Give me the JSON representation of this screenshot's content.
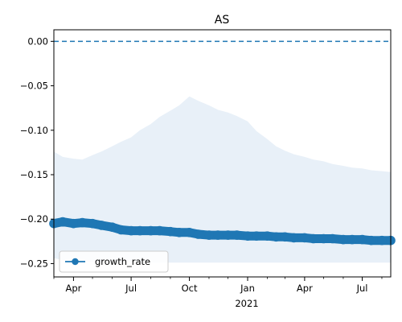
{
  "chart_data": {
    "type": "line",
    "title": "AS",
    "xlabel": "",
    "ylabel": "",
    "x_tick_labels": [
      "Apr",
      "Jul",
      "Oct",
      "Jan",
      "Apr",
      "Jul"
    ],
    "x_year_label": "2021",
    "x_tick_dates": [
      "2020-04-01",
      "2020-07-01",
      "2020-10-01",
      "2021-01-01",
      "2021-04-01",
      "2021-07-01"
    ],
    "xlim": [
      "2020-03-01",
      "2021-08-15"
    ],
    "ylim": [
      -0.265,
      0.013
    ],
    "y_ticks": [
      0.0,
      -0.05,
      -0.1,
      -0.15,
      -0.2,
      -0.25
    ],
    "y_tick_labels": [
      "0.00",
      "−0.05",
      "−0.10",
      "−0.15",
      "−0.20",
      "−0.25"
    ],
    "reference_line": {
      "y": 0.0,
      "style": "dashed",
      "color": "#1f77b4"
    },
    "series": [
      {
        "name": "growth_rate",
        "color": "#1f77b4",
        "marker": "circle",
        "points": [
          {
            "x": "2020-03-01",
            "y": -0.205
          },
          {
            "x": "2020-03-15",
            "y": -0.203
          },
          {
            "x": "2020-04-01",
            "y": -0.205
          },
          {
            "x": "2020-04-15",
            "y": -0.204
          },
          {
            "x": "2020-05-01",
            "y": -0.205
          },
          {
            "x": "2020-05-15",
            "y": -0.207
          },
          {
            "x": "2020-06-01",
            "y": -0.209
          },
          {
            "x": "2020-06-15",
            "y": -0.212
          },
          {
            "x": "2020-07-01",
            "y": -0.213
          },
          {
            "x": "2020-07-15",
            "y": -0.213
          },
          {
            "x": "2020-08-01",
            "y": -0.213
          },
          {
            "x": "2020-08-15",
            "y": -0.213
          },
          {
            "x": "2020-09-01",
            "y": -0.214
          },
          {
            "x": "2020-09-15",
            "y": -0.215
          },
          {
            "x": "2020-10-01",
            "y": -0.215
          },
          {
            "x": "2020-10-15",
            "y": -0.217
          },
          {
            "x": "2020-11-01",
            "y": -0.218
          },
          {
            "x": "2020-11-15",
            "y": -0.218
          },
          {
            "x": "2020-12-01",
            "y": -0.218
          },
          {
            "x": "2020-12-15",
            "y": -0.218
          },
          {
            "x": "2021-01-01",
            "y": -0.219
          },
          {
            "x": "2021-01-15",
            "y": -0.219
          },
          {
            "x": "2021-02-01",
            "y": -0.219
          },
          {
            "x": "2021-02-15",
            "y": -0.22
          },
          {
            "x": "2021-03-01",
            "y": -0.22
          },
          {
            "x": "2021-03-15",
            "y": -0.221
          },
          {
            "x": "2021-04-01",
            "y": -0.221
          },
          {
            "x": "2021-04-15",
            "y": -0.222
          },
          {
            "x": "2021-05-01",
            "y": -0.222
          },
          {
            "x": "2021-05-15",
            "y": -0.222
          },
          {
            "x": "2021-06-01",
            "y": -0.223
          },
          {
            "x": "2021-06-15",
            "y": -0.223
          },
          {
            "x": "2021-07-01",
            "y": -0.223
          },
          {
            "x": "2021-07-15",
            "y": -0.224
          },
          {
            "x": "2021-08-01",
            "y": -0.224
          },
          {
            "x": "2021-08-15",
            "y": -0.224
          }
        ]
      }
    ],
    "band": {
      "color": "#e8f0f8",
      "points": [
        {
          "x": "2020-03-01",
          "upper": -0.124,
          "lower": -0.244
        },
        {
          "x": "2020-03-15",
          "upper": -0.13,
          "lower": -0.246
        },
        {
          "x": "2020-04-01",
          "upper": -0.132,
          "lower": -0.247
        },
        {
          "x": "2020-04-15",
          "upper": -0.133,
          "lower": -0.248
        },
        {
          "x": "2020-05-01",
          "upper": -0.128,
          "lower": -0.248
        },
        {
          "x": "2020-05-15",
          "upper": -0.124,
          "lower": -0.248
        },
        {
          "x": "2020-06-01",
          "upper": -0.118,
          "lower": -0.248
        },
        {
          "x": "2020-06-15",
          "upper": -0.113,
          "lower": -0.248
        },
        {
          "x": "2020-07-01",
          "upper": -0.108,
          "lower": -0.248
        },
        {
          "x": "2020-07-15",
          "upper": -0.1,
          "lower": -0.248
        },
        {
          "x": "2020-08-01",
          "upper": -0.093,
          "lower": -0.249
        },
        {
          "x": "2020-08-15",
          "upper": -0.085,
          "lower": -0.249
        },
        {
          "x": "2020-09-01",
          "upper": -0.078,
          "lower": -0.249
        },
        {
          "x": "2020-09-15",
          "upper": -0.072,
          "lower": -0.249
        },
        {
          "x": "2020-10-01",
          "upper": -0.062,
          "lower": -0.249
        },
        {
          "x": "2020-10-15",
          "upper": -0.067,
          "lower": -0.249
        },
        {
          "x": "2020-11-01",
          "upper": -0.072,
          "lower": -0.249
        },
        {
          "x": "2020-11-15",
          "upper": -0.077,
          "lower": -0.249
        },
        {
          "x": "2020-12-01",
          "upper": -0.08,
          "lower": -0.249
        },
        {
          "x": "2020-12-15",
          "upper": -0.084,
          "lower": -0.249
        },
        {
          "x": "2021-01-01",
          "upper": -0.09,
          "lower": -0.249
        },
        {
          "x": "2021-01-15",
          "upper": -0.101,
          "lower": -0.249
        },
        {
          "x": "2021-02-01",
          "upper": -0.11,
          "lower": -0.249
        },
        {
          "x": "2021-02-15",
          "upper": -0.118,
          "lower": -0.249
        },
        {
          "x": "2021-03-01",
          "upper": -0.123,
          "lower": -0.249
        },
        {
          "x": "2021-03-15",
          "upper": -0.127,
          "lower": -0.249
        },
        {
          "x": "2021-04-01",
          "upper": -0.13,
          "lower": -0.249
        },
        {
          "x": "2021-04-15",
          "upper": -0.133,
          "lower": -0.249
        },
        {
          "x": "2021-05-01",
          "upper": -0.135,
          "lower": -0.249
        },
        {
          "x": "2021-05-15",
          "upper": -0.138,
          "lower": -0.249
        },
        {
          "x": "2021-06-01",
          "upper": -0.14,
          "lower": -0.249
        },
        {
          "x": "2021-06-15",
          "upper": -0.142,
          "lower": -0.249
        },
        {
          "x": "2021-07-01",
          "upper": -0.143,
          "lower": -0.249
        },
        {
          "x": "2021-07-15",
          "upper": -0.145,
          "lower": -0.249
        },
        {
          "x": "2021-08-01",
          "upper": -0.146,
          "lower": -0.249
        },
        {
          "x": "2021-08-15",
          "upper": -0.147,
          "lower": -0.249
        }
      ]
    },
    "legend": {
      "placement": "lower-left",
      "entries": [
        "growth_rate"
      ]
    },
    "grid": false
  }
}
